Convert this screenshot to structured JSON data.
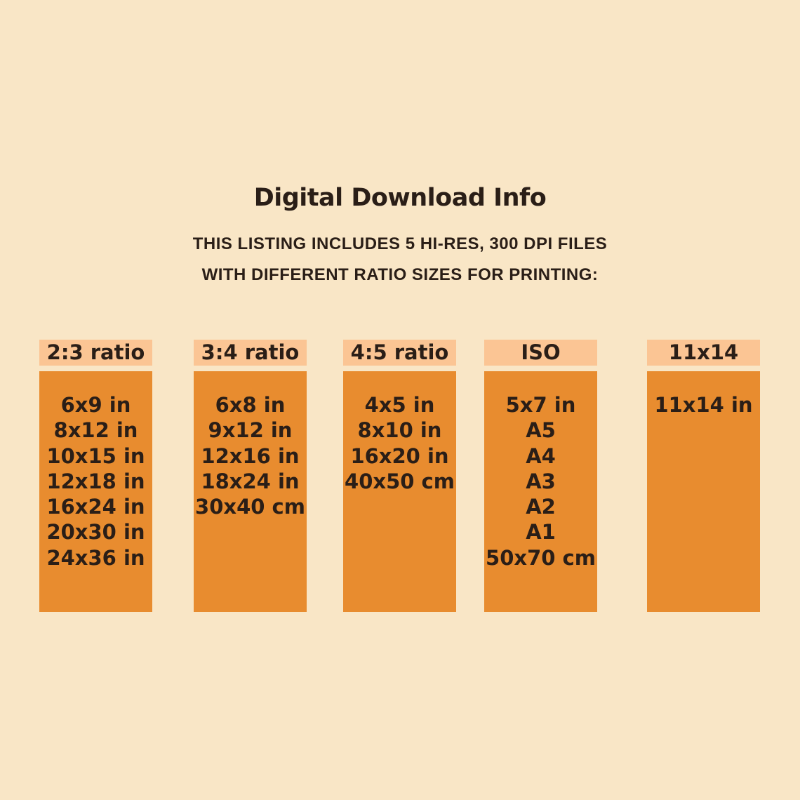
{
  "header": {
    "title": "Digital Download Info",
    "subtitle_line1": "THIS LISTING INCLUDES 5 HI-RES, 300 DPI FILES",
    "subtitle_line2": "WITH DIFFERENT RATIO SIZES FOR PRINTING:"
  },
  "colors": {
    "background": "#f9e6c6",
    "label_background": "#fbc594",
    "column_background": "#e88c2f",
    "text": "#2a1e17"
  },
  "columns": [
    {
      "label": "2:3 ratio",
      "sizes": [
        "6x9 in",
        "8x12 in",
        "10x15 in",
        "12x18 in",
        "16x24 in",
        "20x30 in",
        "24x36 in"
      ]
    },
    {
      "label": "3:4 ratio",
      "sizes": [
        "6x8 in",
        "9x12 in",
        "12x16 in",
        "18x24 in",
        "30x40 cm"
      ]
    },
    {
      "label": "4:5 ratio",
      "sizes": [
        "4x5 in",
        "8x10 in",
        "16x20 in",
        "40x50 cm"
      ]
    },
    {
      "label": "ISO",
      "sizes": [
        "5x7 in",
        "A5",
        "A4",
        "A3",
        "A2",
        "A1",
        "50x70 cm"
      ]
    },
    {
      "label": "11x14",
      "sizes": [
        "11x14 in"
      ]
    }
  ]
}
